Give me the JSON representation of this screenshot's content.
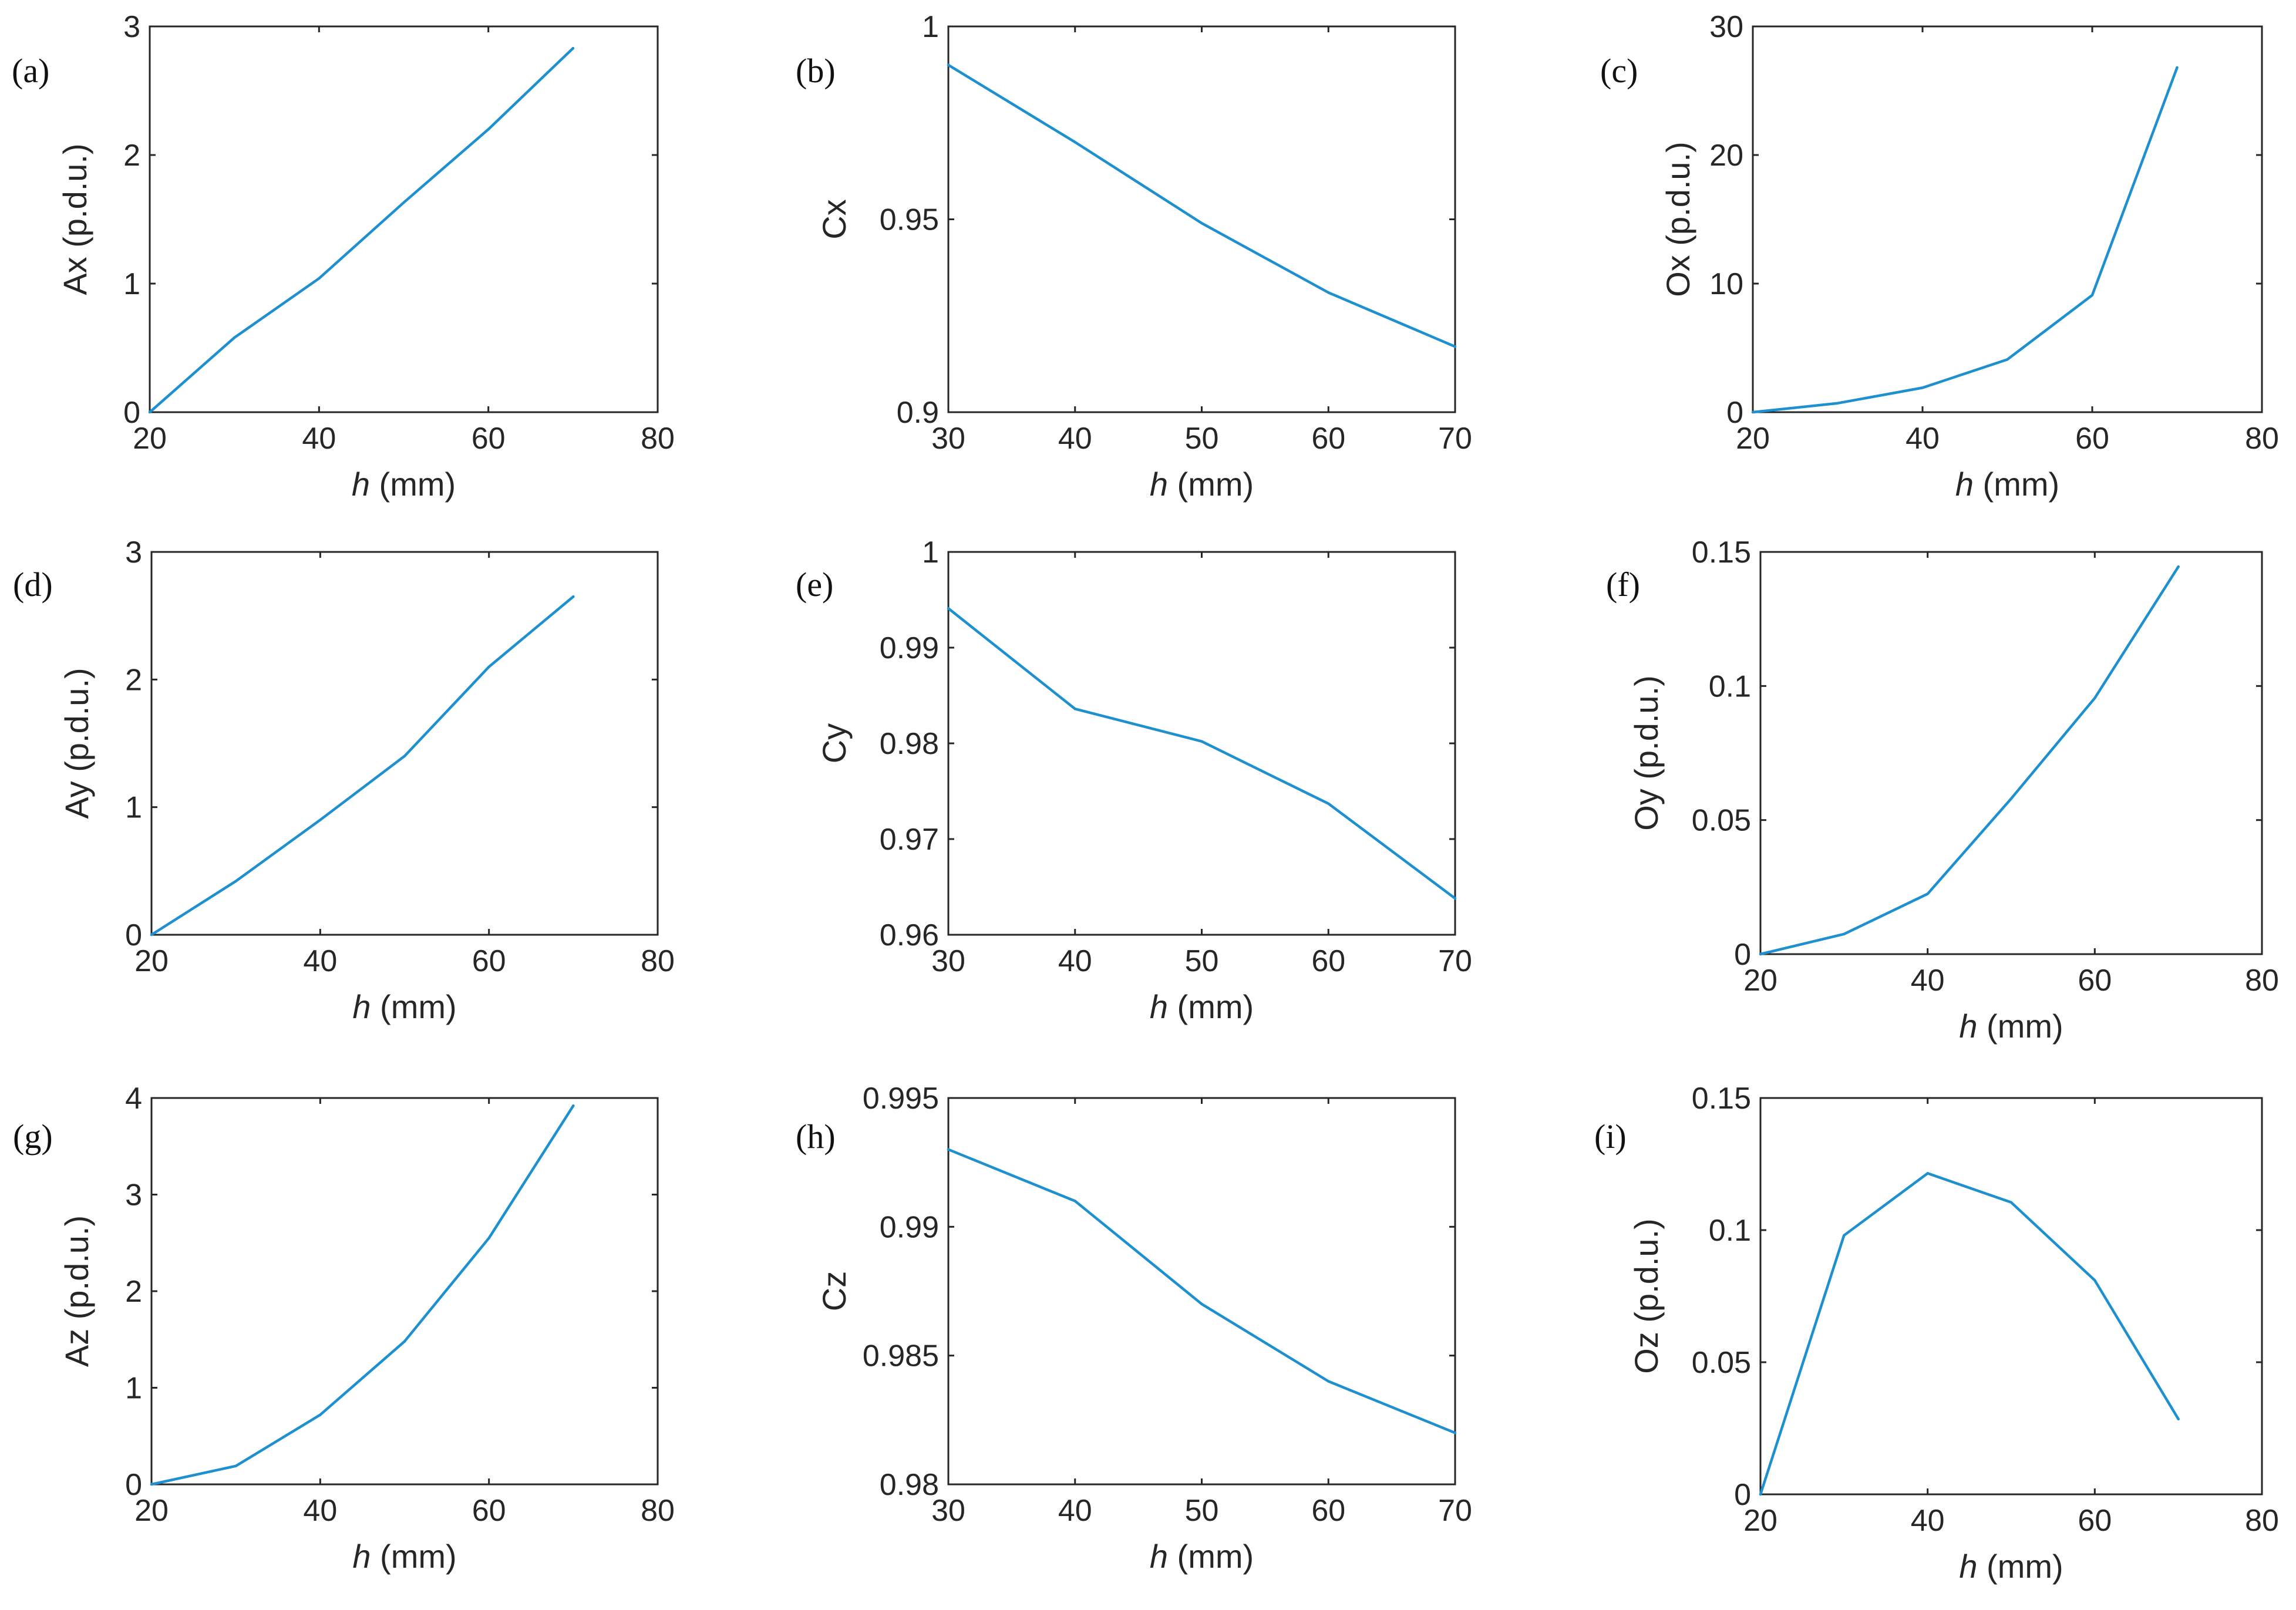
{
  "chart_data": [
    {
      "type": "line",
      "label": "(a)",
      "x": [
        20,
        30,
        40,
        50,
        60,
        70
      ],
      "values": [
        0,
        0.58,
        1.04,
        1.63,
        2.2,
        2.83
      ],
      "xlabel_italic": "h",
      "xlabel_unit": "(mm)",
      "ylabel": "Ax (p.d.u.)",
      "xlim": [
        20,
        80
      ],
      "ylim": [
        0,
        3
      ],
      "xticks": [
        20,
        40,
        60,
        80
      ],
      "xtick_labels": [
        "20",
        "40",
        "60",
        "80"
      ],
      "yticks": [
        0,
        1,
        2,
        3
      ],
      "ytick_labels": [
        "0",
        "1",
        "2",
        "3"
      ]
    },
    {
      "type": "line",
      "label": "(b)",
      "x": [
        30,
        40,
        50,
        60,
        70
      ],
      "values": [
        0.99,
        0.97,
        0.949,
        0.931,
        0.917
      ],
      "xlabel_italic": "h",
      "xlabel_unit": "(mm)",
      "ylabel": "Cx",
      "xlim": [
        30,
        70
      ],
      "ylim": [
        0.9,
        1
      ],
      "xticks": [
        30,
        40,
        50,
        60,
        70
      ],
      "xtick_labels": [
        "30",
        "40",
        "50",
        "60",
        "70"
      ],
      "yticks": [
        0.9,
        0.95,
        1
      ],
      "ytick_labels": [
        "0.9",
        "0.95",
        "1"
      ]
    },
    {
      "type": "line",
      "label": "(c)",
      "x": [
        20,
        30,
        40,
        50,
        60,
        70
      ],
      "values": [
        0,
        0.7,
        1.9,
        4.1,
        9.1,
        26.8
      ],
      "xlabel_italic": "h",
      "xlabel_unit": "(mm)",
      "ylabel": "Ox (p.d.u.)",
      "xlim": [
        20,
        80
      ],
      "ylim": [
        0,
        30
      ],
      "xticks": [
        20,
        40,
        60,
        80
      ],
      "xtick_labels": [
        "20",
        "40",
        "60",
        "80"
      ],
      "yticks": [
        0,
        10,
        20,
        30
      ],
      "ytick_labels": [
        "0",
        "10",
        "20",
        "30"
      ]
    },
    {
      "type": "line",
      "label": "(d)",
      "x": [
        20,
        30,
        40,
        50,
        60,
        70
      ],
      "values": [
        0,
        0.42,
        0.9,
        1.4,
        2.1,
        2.65
      ],
      "xlabel_italic": "h",
      "xlabel_unit": "(mm)",
      "ylabel": "Ay (p.d.u.)",
      "xlim": [
        20,
        80
      ],
      "ylim": [
        0,
        3
      ],
      "xticks": [
        20,
        40,
        60,
        80
      ],
      "xtick_labels": [
        "20",
        "40",
        "60",
        "80"
      ],
      "yticks": [
        0,
        1,
        2,
        3
      ],
      "ytick_labels": [
        "0",
        "1",
        "2",
        "3"
      ]
    },
    {
      "type": "line",
      "label": "(e)",
      "x": [
        30,
        40,
        50,
        60,
        70
      ],
      "values": [
        0.9941,
        0.9836,
        0.9802,
        0.9737,
        0.9638
      ],
      "xlabel_italic": "h",
      "xlabel_unit": "(mm)",
      "ylabel": "Cy",
      "xlim": [
        30,
        70
      ],
      "ylim": [
        0.96,
        1
      ],
      "xticks": [
        30,
        40,
        50,
        60,
        70
      ],
      "xtick_labels": [
        "30",
        "40",
        "50",
        "60",
        "70"
      ],
      "yticks": [
        0.96,
        0.97,
        0.98,
        0.99,
        1
      ],
      "ytick_labels": [
        "0.96",
        "0.97",
        "0.98",
        "0.99",
        "1"
      ]
    },
    {
      "type": "line",
      "label": "(f)",
      "x": [
        20,
        30,
        40,
        50,
        60,
        70
      ],
      "values": [
        0,
        0.0075,
        0.0225,
        0.058,
        0.0955,
        0.1445
      ],
      "xlabel_italic": "h",
      "xlabel_unit": "(mm)",
      "ylabel": "Oy (p.d.u.)",
      "xlim": [
        20,
        80
      ],
      "ylim": [
        0,
        0.15
      ],
      "xticks": [
        20,
        40,
        60,
        80
      ],
      "xtick_labels": [
        "20",
        "40",
        "60",
        "80"
      ],
      "yticks": [
        0,
        0.05,
        0.1,
        0.15
      ],
      "ytick_labels": [
        "0",
        "0.05",
        "0.1",
        "0.15"
      ]
    },
    {
      "type": "line",
      "label": "(g)",
      "x": [
        20,
        30,
        40,
        50,
        60,
        70
      ],
      "values": [
        0,
        0.19,
        0.72,
        1.48,
        2.55,
        3.92
      ],
      "xlabel_italic": "h",
      "xlabel_unit": "(mm)",
      "ylabel": "Az (p.d.u.)",
      "xlim": [
        20,
        80
      ],
      "ylim": [
        0,
        4
      ],
      "xticks": [
        20,
        40,
        60,
        80
      ],
      "xtick_labels": [
        "20",
        "40",
        "60",
        "80"
      ],
      "yticks": [
        0,
        1,
        2,
        3,
        4
      ],
      "ytick_labels": [
        "0",
        "1",
        "2",
        "3",
        "4"
      ]
    },
    {
      "type": "line",
      "label": "(h)",
      "x": [
        30,
        40,
        50,
        60,
        70
      ],
      "values": [
        0.993,
        0.991,
        0.987,
        0.984,
        0.982
      ],
      "xlabel_italic": "h",
      "xlabel_unit": "(mm)",
      "ylabel": "Cz",
      "xlim": [
        30,
        70
      ],
      "ylim": [
        0.98,
        0.995
      ],
      "xticks": [
        30,
        40,
        50,
        60,
        70
      ],
      "xtick_labels": [
        "30",
        "40",
        "50",
        "60",
        "70"
      ],
      "yticks": [
        0.98,
        0.985,
        0.99,
        0.995
      ],
      "ytick_labels": [
        "0.98",
        "0.985",
        "0.99",
        "0.995"
      ]
    },
    {
      "type": "line",
      "label": "(i)",
      "x": [
        20,
        30,
        40,
        50,
        60,
        70
      ],
      "values": [
        0,
        0.098,
        0.1215,
        0.1105,
        0.081,
        0.0285
      ],
      "xlabel_italic": "h",
      "xlabel_unit": "(mm)",
      "ylabel": "Oz (p.d.u.)",
      "xlim": [
        20,
        80
      ],
      "ylim": [
        0,
        0.15
      ],
      "xticks": [
        20,
        40,
        60,
        80
      ],
      "xtick_labels": [
        "20",
        "40",
        "60",
        "80"
      ],
      "yticks": [
        0,
        0.05,
        0.1,
        0.15
      ],
      "ytick_labels": [
        "0",
        "0.05",
        "0.1",
        "0.15"
      ]
    }
  ],
  "colors": {
    "line": "#1e90d0",
    "axis": "#262626"
  }
}
